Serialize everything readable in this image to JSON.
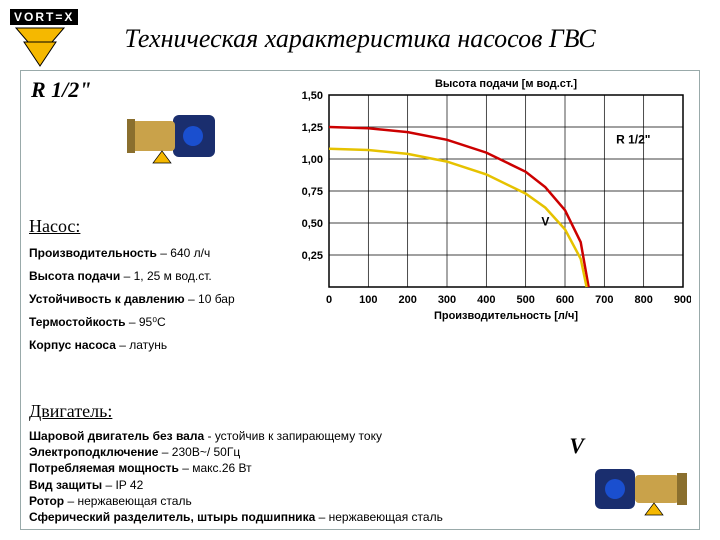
{
  "brand": "VORT=X",
  "title": "Техническая характеристика  насосов ГВС",
  "model": "R 1/2\"",
  "pump_section": {
    "heading": "Насос:",
    "specs": [
      {
        "label": "Производительность",
        "value": "– 640 л/ч"
      },
      {
        "label": "Высота подачи",
        "value": "– 1, 25 м вод.ст."
      },
      {
        "label": "Устойчивость к давлению",
        "value": "– 10 бар"
      },
      {
        "label": "Термостойкость",
        "value": "– 95⁰С"
      },
      {
        "label": "Корпус насоса",
        "value": "– латунь"
      }
    ]
  },
  "motor_section": {
    "heading": "Двигатель:",
    "lines": [
      {
        "bold": "Шаровой двигатель без вала",
        "rest": " -  устойчив к запирающему току"
      },
      {
        "bold": "Электроподключение",
        "rest": " – 230В~/ 50Гц"
      },
      {
        "bold": "Потребляемая мощность",
        "rest": " – макс.26 Вт"
      },
      {
        "bold": "Вид защиты",
        "rest": " – IP 42"
      },
      {
        "bold": "Ротор",
        "rest": " – нержавеющая сталь"
      },
      {
        "bold": "Сферический разделитель, штырь подшипника",
        "rest": " – нержавеющая сталь"
      }
    ]
  },
  "v_label": "V",
  "chart": {
    "chart_title": "Высота подачи [м вод.ст.]",
    "xlabel": "Производительность [л/ч]",
    "xlim": [
      0,
      900
    ],
    "xtick_step": 100,
    "ylim": [
      0,
      1.5
    ],
    "ytick_step": 0.25,
    "ylabels": [
      "0,25",
      "0,50",
      "0,75",
      "1,00",
      "1,25",
      "1,50"
    ],
    "grid_color": "#000000",
    "line_width": 2.5,
    "label_fontsize": 11,
    "tick_fontsize": 11,
    "series": [
      {
        "name": "R 1/2\"",
        "color": "#cc0000",
        "points": [
          [
            0,
            1.25
          ],
          [
            100,
            1.24
          ],
          [
            200,
            1.21
          ],
          [
            300,
            1.15
          ],
          [
            400,
            1.05
          ],
          [
            500,
            0.9
          ],
          [
            550,
            0.78
          ],
          [
            600,
            0.6
          ],
          [
            640,
            0.35
          ],
          [
            660,
            0.0
          ]
        ]
      },
      {
        "name": "V",
        "color": "#e6c200",
        "points": [
          [
            0,
            1.08
          ],
          [
            100,
            1.07
          ],
          [
            200,
            1.04
          ],
          [
            300,
            0.98
          ],
          [
            400,
            0.88
          ],
          [
            500,
            0.73
          ],
          [
            550,
            0.62
          ],
          [
            600,
            0.45
          ],
          [
            640,
            0.22
          ],
          [
            655,
            0.0
          ]
        ]
      }
    ]
  },
  "colors": {
    "pump_body": "#1a2e6e",
    "pump_brass": "#c9a24a",
    "logo_yellow": "#f5b800"
  }
}
